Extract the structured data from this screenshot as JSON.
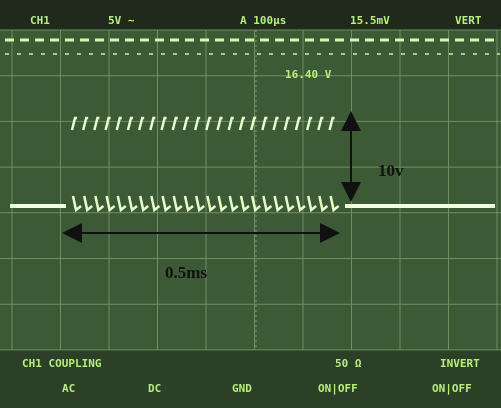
{
  "header": {
    "channel": "CH1",
    "volts_per_div": "5V ~",
    "time_base": "A 100μs",
    "trigger_level": "15.5mV",
    "trigger_mode": "VERT"
  },
  "readout": "16.40 V",
  "annotations": {
    "amplitude": "10v",
    "duration": "0.5ms"
  },
  "menu": {
    "title": "CH1 COUPLING",
    "impedance": "50 Ω",
    "invert": "INVERT",
    "options": [
      "AC",
      "DC",
      "GND",
      "ON|OFF",
      "ON|OFF"
    ]
  }
}
